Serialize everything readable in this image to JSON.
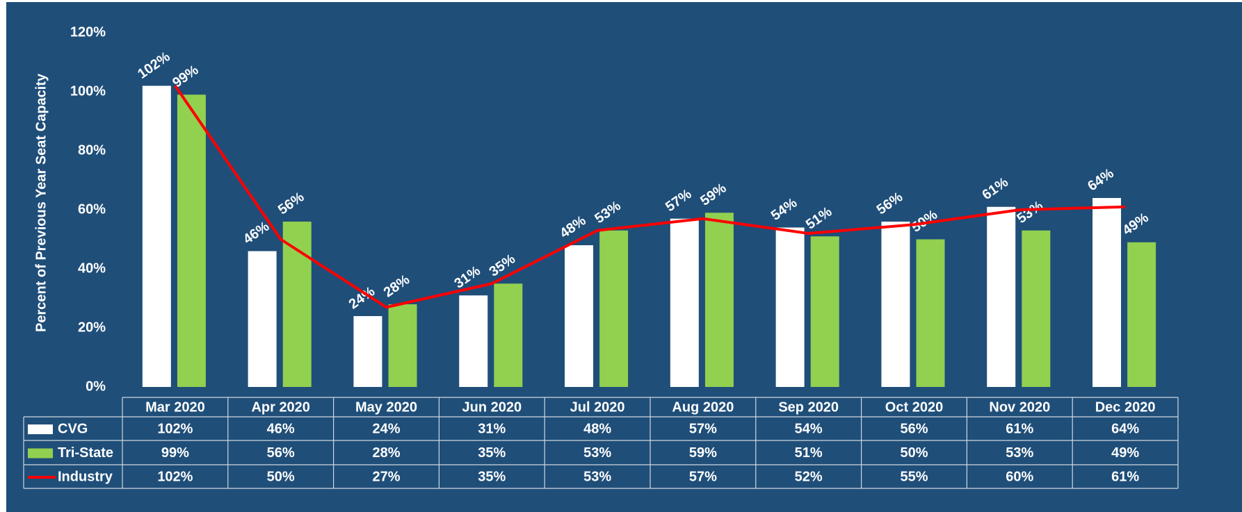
{
  "chart_data": {
    "type": "bar",
    "y_label": "Percent of Previous Year Seat Capacity",
    "categories": [
      "Mar 2020",
      "Apr 2020",
      "May 2020",
      "Jun 2020",
      "Jul 2020",
      "Aug 2020",
      "Sep 2020",
      "Oct 2020",
      "Nov 2020",
      "Dec 2020"
    ],
    "series": [
      {
        "name": "CVG",
        "color": "#ffffff",
        "type": "bar",
        "values": [
          102,
          46,
          24,
          31,
          48,
          57,
          54,
          56,
          61,
          64
        ],
        "value_labels": [
          "102%",
          "46%",
          "24%",
          "31%",
          "48%",
          "57%",
          "54%",
          "56%",
          "61%",
          "64%"
        ]
      },
      {
        "name": "Tri-State",
        "color": "#92d050",
        "type": "bar",
        "values": [
          99,
          56,
          28,
          35,
          53,
          59,
          51,
          50,
          53,
          49
        ],
        "value_labels": [
          "99%",
          "56%",
          "28%",
          "35%",
          "53%",
          "59%",
          "51%",
          "50%",
          "53%",
          "49%"
        ]
      },
      {
        "name": "Industry",
        "color": "#ff0000",
        "type": "line",
        "values": [
          102,
          50,
          27,
          35,
          53,
          57,
          52,
          55,
          60,
          61
        ],
        "value_labels": [
          "102%",
          "50%",
          "27%",
          "35%",
          "53%",
          "57%",
          "52%",
          "55%",
          "60%",
          "61%"
        ]
      }
    ],
    "ylim": [
      0,
      120
    ],
    "yticks": [
      {
        "value": 0,
        "label": "0%"
      },
      {
        "value": 20,
        "label": "20%"
      },
      {
        "value": 40,
        "label": "40%"
      },
      {
        "value": 60,
        "label": "60%"
      },
      {
        "value": 80,
        "label": "80%"
      },
      {
        "value": 100,
        "label": "100%"
      },
      {
        "value": 120,
        "label": "120%"
      }
    ],
    "grid": false,
    "data_labels": [
      "CVG",
      "Tri-State"
    ]
  }
}
